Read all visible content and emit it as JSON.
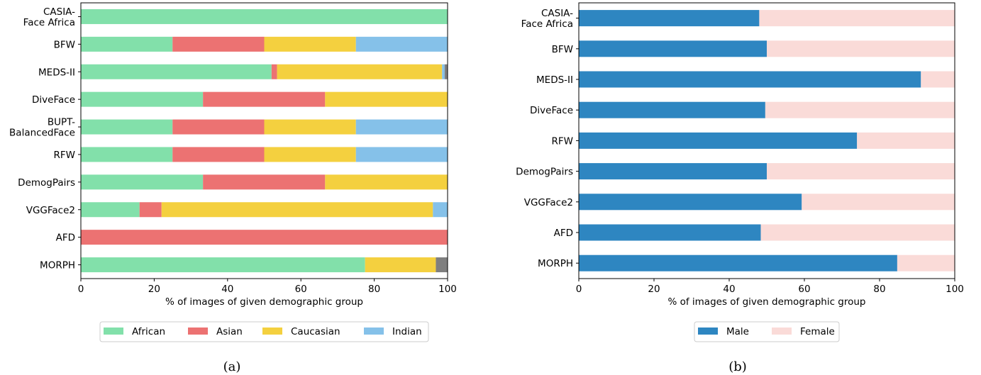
{
  "chart_data": [
    {
      "type": "bar",
      "orientation": "horizontal",
      "stacked": true,
      "caption": "(a)",
      "xlabel": "% of images of given demographic group",
      "xlim": [
        0,
        100
      ],
      "xticks": [
        "0",
        "20",
        "40",
        "60",
        "80",
        "100"
      ],
      "legend_position": "bottom",
      "categories": [
        "CASIA-\nFace Africa",
        "BFW",
        "MEDS-II",
        "DiveFace",
        "BUPT-\nBalancedFace",
        "RFW",
        "DemogPairs",
        "VGGFace2",
        "AFD",
        "MORPH"
      ],
      "series": [
        {
          "name": "African",
          "color": "#82e0aa",
          "values": [
            100,
            25,
            52,
            33.3,
            25,
            25,
            33.3,
            16,
            0,
            77.5
          ]
        },
        {
          "name": "Asian",
          "color": "#ec7272",
          "values": [
            0,
            25,
            1.5,
            33.3,
            25,
            25,
            33.3,
            6,
            100,
            0
          ]
        },
        {
          "name": "Caucasian",
          "color": "#f4d03f",
          "values": [
            0,
            25,
            45,
            33.4,
            25,
            25,
            33.4,
            74,
            0,
            19.3
          ]
        },
        {
          "name": "Indian",
          "color": "#85c1e9",
          "values": [
            0,
            25,
            0.7,
            0,
            25,
            25,
            0,
            4,
            0,
            0
          ]
        },
        {
          "name": "",
          "color": "#7f7f7f",
          "values": [
            0,
            0,
            0.8,
            0,
            0,
            0,
            0,
            0,
            0,
            3.2
          ]
        }
      ]
    },
    {
      "type": "bar",
      "orientation": "horizontal",
      "stacked": true,
      "caption": "(b)",
      "xlabel": "% of images of given demographic group",
      "xlim": [
        0,
        100
      ],
      "xticks": [
        "0",
        "20",
        "40",
        "60",
        "80",
        "100"
      ],
      "legend_position": "bottom",
      "categories": [
        "CASIA-\nFace Africa",
        "BFW",
        "MEDS-II",
        "DiveFace",
        "RFW",
        "DemogPairs",
        "VGGFace2",
        "AFD",
        "MORPH"
      ],
      "series": [
        {
          "name": "Male",
          "color": "#2e86c1",
          "values": [
            48,
            50,
            91,
            49.6,
            74,
            50,
            59.3,
            48.4,
            84.7
          ]
        },
        {
          "name": "Female",
          "color": "#fadbd8",
          "values": [
            52,
            50,
            9,
            50.4,
            26,
            50,
            40.7,
            51.6,
            15.3
          ]
        }
      ]
    }
  ]
}
